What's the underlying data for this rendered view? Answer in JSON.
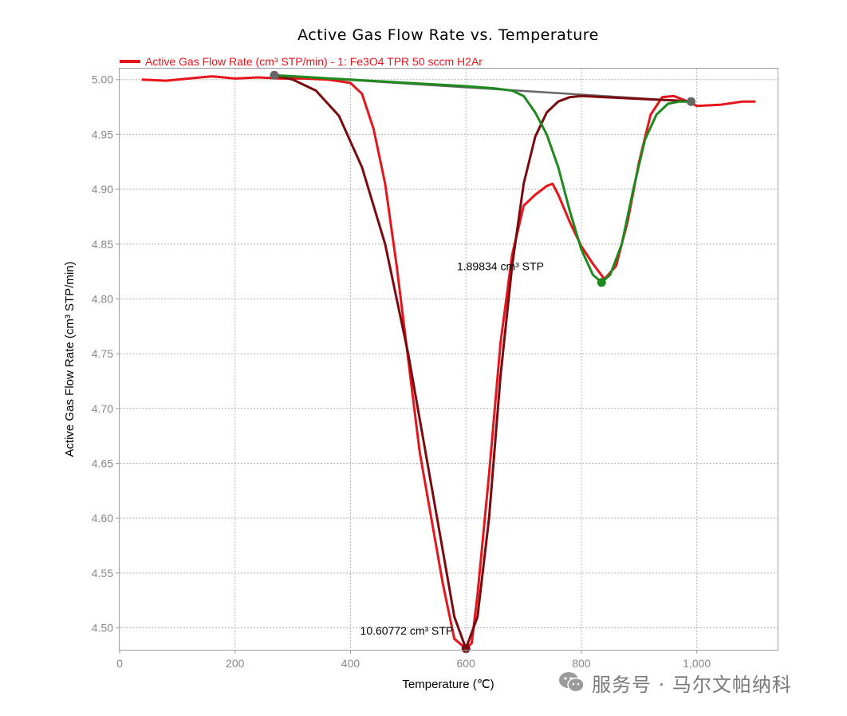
{
  "chart_data": {
    "type": "line",
    "title": "Active Gas Flow Rate vs. Temperature",
    "xlabel": "Temperature (℃)",
    "ylabel": "Active Gas Flow Rate (cm³ STP/min)",
    "xlim": [
      0,
      1140
    ],
    "ylim": [
      4.48,
      5.01
    ],
    "x_ticks": [
      0,
      200,
      400,
      600,
      800,
      1000
    ],
    "x_tick_labels": [
      "0",
      "200",
      "400",
      "600",
      "800",
      "1,000"
    ],
    "y_ticks": [
      4.5,
      4.55,
      4.6,
      4.65,
      4.7,
      4.75,
      4.8,
      4.85,
      4.9,
      4.95,
      5.0
    ],
    "y_tick_labels": [
      "4.50",
      "4.55",
      "4.60",
      "4.65",
      "4.70",
      "4.75",
      "4.80",
      "4.85",
      "4.90",
      "4.95",
      "5.00"
    ],
    "grid": true,
    "legend": {
      "position": "top-left",
      "entries": [
        {
          "label": "Active Gas Flow Rate (cm³ STP/min) - 1: Fe3O4 TPR 50 sccm H2Ar",
          "color": "#e8141b"
        }
      ]
    },
    "series": [
      {
        "name": "Active Gas Flow Rate (cm³ STP/min) - 1: Fe3O4 TPR 50 sccm H2Ar",
        "color": "#e8141b",
        "x": [
          40,
          80,
          120,
          160,
          200,
          240,
          280,
          320,
          360,
          400,
          420,
          440,
          460,
          480,
          500,
          520,
          540,
          560,
          580,
          600,
          610,
          620,
          640,
          660,
          680,
          700,
          720,
          740,
          750,
          760,
          780,
          800,
          820,
          840,
          860,
          880,
          900,
          920,
          940,
          960,
          980,
          1000,
          1040,
          1080,
          1100
        ],
        "y": [
          5.0,
          4.999,
          5.001,
          5.003,
          5.001,
          5.002,
          5.001,
          5.001,
          5.0,
          4.997,
          4.987,
          4.955,
          4.905,
          4.83,
          4.745,
          4.66,
          4.6,
          4.54,
          4.49,
          4.481,
          4.486,
          4.53,
          4.64,
          4.76,
          4.84,
          4.885,
          4.895,
          4.903,
          4.905,
          4.895,
          4.87,
          4.848,
          4.832,
          4.818,
          4.83,
          4.87,
          4.925,
          4.968,
          4.984,
          4.985,
          4.981,
          4.976,
          4.977,
          4.98,
          4.98
        ]
      },
      {
        "name": "Fit peak 1",
        "color": "#7b0a10",
        "x": [
          268,
          300,
          340,
          380,
          420,
          460,
          500,
          530,
          560,
          580,
          600,
          620,
          640,
          660,
          680,
          700,
          720,
          740,
          760,
          780,
          800,
          840,
          880,
          920,
          960,
          990
        ],
        "y": [
          5.004,
          5.0,
          4.99,
          4.967,
          4.92,
          4.85,
          4.75,
          4.66,
          4.57,
          4.51,
          4.481,
          4.51,
          4.6,
          4.73,
          4.83,
          4.905,
          4.948,
          4.97,
          4.98,
          4.984,
          4.985,
          4.984,
          4.983,
          4.982,
          4.981,
          4.98
        ]
      },
      {
        "name": "Fit peak 2",
        "color": "#1e8a1e",
        "x": [
          268,
          400,
          500,
          600,
          650,
          680,
          700,
          720,
          740,
          760,
          780,
          800,
          820,
          835,
          850,
          870,
          890,
          910,
          930,
          950,
          970,
          990
        ],
        "y": [
          5.004,
          5.0,
          4.997,
          4.994,
          4.992,
          4.99,
          4.985,
          4.97,
          4.95,
          4.92,
          4.88,
          4.845,
          4.822,
          4.815,
          4.822,
          4.85,
          4.9,
          4.945,
          4.968,
          4.978,
          4.98,
          4.98
        ]
      },
      {
        "name": "Baseline",
        "color": "#666666",
        "x": [
          268,
          990
        ],
        "y": [
          5.004,
          4.98
        ]
      }
    ],
    "markers": [
      {
        "x": 268,
        "y": 5.004,
        "color": "#666666"
      },
      {
        "x": 990,
        "y": 4.98,
        "color": "#666666"
      },
      {
        "x": 835,
        "y": 4.815,
        "color": "#1e8a1e"
      },
      {
        "x": 600,
        "y": 4.481,
        "color": "#7b0a10"
      }
    ],
    "annotations": [
      {
        "text": "1.89834 cm³ STP",
        "x": 735,
        "y": 4.826,
        "anchor": "end"
      },
      {
        "text": "10.60772 cm³ STP",
        "x": 578,
        "y": 4.494,
        "anchor": "end"
      }
    ]
  },
  "watermark": {
    "text": "服务号 · 马尔文帕纳科",
    "icon": "wechat-icon"
  }
}
